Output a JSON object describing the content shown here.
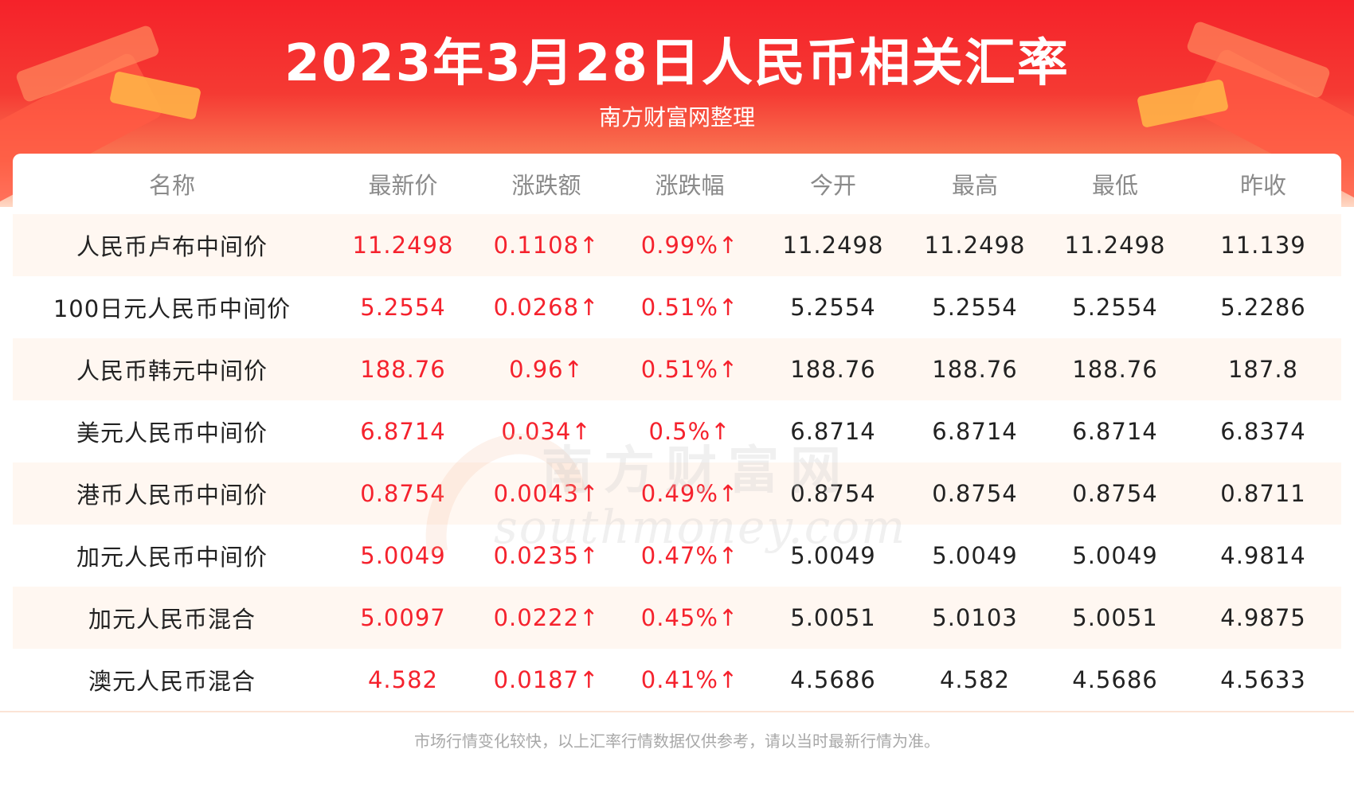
{
  "header": {
    "title": "2023年3月28日人民币相关汇率",
    "subtitle": "南方财富网整理"
  },
  "watermark": {
    "cn": "南方财富网",
    "en": "southmoney.com"
  },
  "table": {
    "columns": [
      "名称",
      "最新价",
      "涨跌额",
      "涨跌幅",
      "今开",
      "最高",
      "最低",
      "昨收"
    ],
    "rows": [
      [
        "人民币卢布中间价",
        "11.2498",
        "0.1108↑",
        "0.99%↑",
        "11.2498",
        "11.2498",
        "11.2498",
        "11.139"
      ],
      [
        "100日元人民币中间价",
        "5.2554",
        "0.0268↑",
        "0.51%↑",
        "5.2554",
        "5.2554",
        "5.2554",
        "5.2286"
      ],
      [
        "人民币韩元中间价",
        "188.76",
        "0.96↑",
        "0.51%↑",
        "188.76",
        "188.76",
        "188.76",
        "187.8"
      ],
      [
        "美元人民币中间价",
        "6.8714",
        "0.034↑",
        "0.5%↑",
        "6.8714",
        "6.8714",
        "6.8714",
        "6.8374"
      ],
      [
        "港币人民币中间价",
        "0.8754",
        "0.0043↑",
        "0.49%↑",
        "0.8754",
        "0.8754",
        "0.8754",
        "0.8711"
      ],
      [
        "加元人民币中间价",
        "5.0049",
        "0.0235↑",
        "0.47%↑",
        "5.0049",
        "5.0049",
        "5.0049",
        "4.9814"
      ],
      [
        "加元人民币混合",
        "5.0097",
        "0.0222↑",
        "0.45%↑",
        "5.0051",
        "5.0103",
        "5.0051",
        "4.9875"
      ],
      [
        "澳元人民币混合",
        "4.582",
        "0.0187↑",
        "0.41%↑",
        "4.5686",
        "4.582",
        "4.5686",
        "4.5633"
      ]
    ]
  },
  "footer": {
    "note": "市场行情变化较快，以上汇率行情数据仅供参考，请以当时最新行情为准。"
  },
  "colors": {
    "accent_red": "#f5222d",
    "header_red": "#f5222a",
    "row_stripe": "#fff7f1",
    "header_text": "#8a8a8a"
  }
}
